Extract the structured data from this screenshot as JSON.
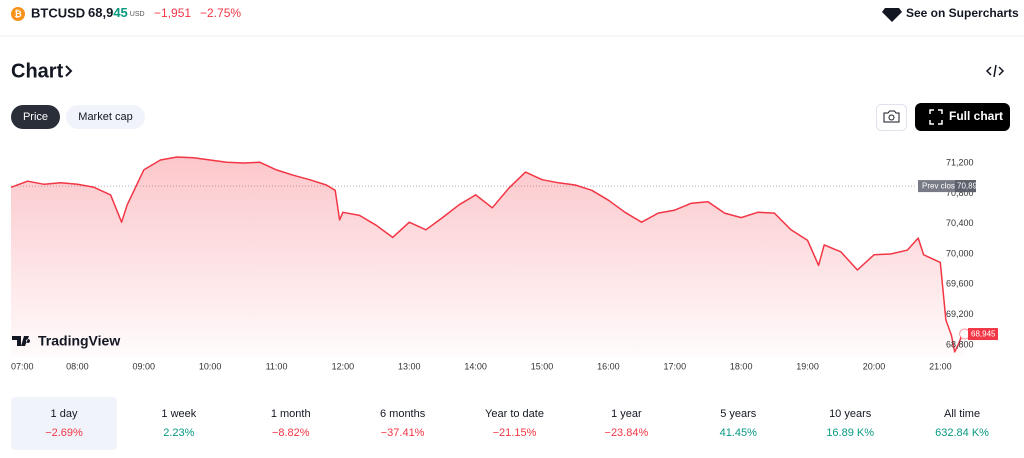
{
  "header": {
    "symbol": "BTCUSD",
    "price_main": "68,9",
    "price_tail": "45",
    "currency": "USD",
    "change": "−1,951",
    "change_pct": "−2.75%",
    "supercharts": "See on Supercharts"
  },
  "section_title": "Chart",
  "tabs": [
    "Price",
    "Market cap"
  ],
  "full_chart": "Full chart",
  "brand": "TradingView",
  "chart_data": {
    "type": "line",
    "color": "#f23645",
    "x": [
      "07:00",
      "07:15",
      "07:30",
      "07:45",
      "08:00",
      "08:15",
      "08:30",
      "08:40",
      "08:45",
      "09:00",
      "09:15",
      "09:30",
      "09:45",
      "10:00",
      "10:15",
      "10:30",
      "10:45",
      "11:00",
      "11:15",
      "11:30",
      "11:45",
      "11:53",
      "11:57",
      "12:00",
      "12:15",
      "12:30",
      "12:45",
      "13:00",
      "13:15",
      "13:30",
      "13:45",
      "14:00",
      "14:15",
      "14:30",
      "14:45",
      "15:00",
      "15:15",
      "15:30",
      "15:45",
      "16:00",
      "16:15",
      "16:30",
      "16:45",
      "17:00",
      "17:15",
      "17:30",
      "17:45",
      "18:00",
      "18:15",
      "18:30",
      "18:45",
      "19:00",
      "19:10",
      "19:15",
      "19:30",
      "19:45",
      "20:00",
      "20:15",
      "20:30",
      "20:40",
      "20:45",
      "21:00",
      "21:05",
      "21:10",
      "21:13",
      "21:17",
      "21:20",
      "21:22"
    ],
    "values": [
      70880,
      70960,
      70920,
      70940,
      70920,
      70880,
      70780,
      70420,
      70650,
      71110,
      71240,
      71280,
      71270,
      71240,
      71210,
      71200,
      71210,
      71110,
      71040,
      70980,
      70910,
      70840,
      70450,
      70550,
      70510,
      70380,
      70220,
      70420,
      70320,
      70480,
      70650,
      70780,
      70610,
      70870,
      71080,
      70980,
      70940,
      70910,
      70840,
      70710,
      70550,
      70420,
      70540,
      70580,
      70670,
      70690,
      70540,
      70480,
      70550,
      70540,
      70320,
      70180,
      69850,
      70120,
      70030,
      69790,
      69990,
      70000,
      70050,
      70210,
      69990,
      69890,
      69130,
      68930,
      68710,
      68830,
      68960,
      68945
    ],
    "xlim": [
      "07:00",
      "21:25"
    ],
    "xticks": [
      "07:00",
      "08:00",
      "09:00",
      "10:00",
      "11:00",
      "12:00",
      "13:00",
      "14:00",
      "15:00",
      "16:00",
      "17:00",
      "18:00",
      "19:00",
      "20:00",
      "21:00"
    ],
    "ylim": [
      68650,
      71500
    ],
    "yticks": [
      {
        "value": 68800,
        "label": "68,800"
      },
      {
        "value": 69200,
        "label": "69,200"
      },
      {
        "value": 69600,
        "label": "69,600"
      },
      {
        "value": 70000,
        "label": "70,000"
      },
      {
        "value": 70400,
        "label": "70,400"
      },
      {
        "value": 70800,
        "label": "70,800"
      },
      {
        "value": 71200,
        "label": "71,200"
      }
    ],
    "grid": false,
    "prev_close": {
      "name": "Prev close",
      "value": 70896,
      "label": "70,896"
    },
    "last_price": {
      "value": 68945,
      "label": "68,945"
    }
  },
  "periods": [
    {
      "label": "1 day",
      "change": "−2.69%",
      "color": "#f23645"
    },
    {
      "label": "1 week",
      "change": "2.23%",
      "color": "#089981"
    },
    {
      "label": "1 month",
      "change": "−8.82%",
      "color": "#f23645"
    },
    {
      "label": "6 months",
      "change": "−37.41%",
      "color": "#f23645"
    },
    {
      "label": "Year to date",
      "change": "−21.15%",
      "color": "#f23645"
    },
    {
      "label": "1 year",
      "change": "−23.84%",
      "color": "#f23645"
    },
    {
      "label": "5 years",
      "change": "41.45%",
      "color": "#089981"
    },
    {
      "label": "10 years",
      "change": "16.89 K%",
      "color": "#089981"
    },
    {
      "label": "All time",
      "change": "632.84 K%",
      "color": "#089981"
    }
  ]
}
